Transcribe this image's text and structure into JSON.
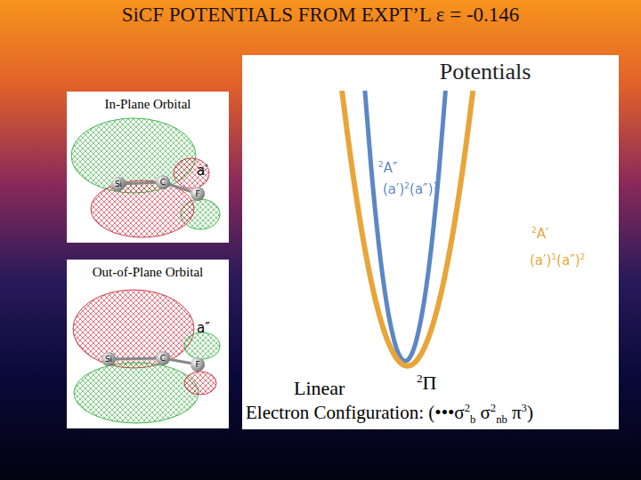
{
  "title": "SiCF POTENTIALS FROM EXPT’L ε = -0.146",
  "orbitals": [
    {
      "header": "In-Plane Orbital",
      "symbol": "a′",
      "atoms": [
        "Si",
        "C",
        "F"
      ]
    },
    {
      "header": "Out-of-Plane Orbital",
      "symbol": "a″",
      "atoms": [
        "Si",
        "C",
        "F"
      ]
    }
  ],
  "chart_data": {
    "type": "line",
    "title": "Potentials",
    "xlim": [
      0,
      10
    ],
    "ylim": [
      0,
      10
    ],
    "grid": false,
    "tick_labels": false,
    "series": [
      {
        "color": "#e8a53a",
        "x": [
          2.65,
          2.89,
          3.19,
          3.49,
          3.79,
          4.09,
          4.39,
          4.69,
          4.99,
          5.29,
          5.59,
          5.89,
          6.13
        ],
        "values": [
          10,
          7.5,
          4.84,
          2.76,
          1.28,
          0.4,
          0.1,
          0.4,
          1.28,
          2.76,
          4.84,
          7.5,
          10
        ]
      },
      {
        "color": "#5b87c5",
        "x": [
          3.26,
          3.43,
          3.63,
          3.83,
          4.03,
          4.18,
          4.33,
          4.48,
          4.63,
          4.83,
          5.03,
          5.23,
          5.4
        ],
        "values": [
          10,
          7.17,
          4.45,
          2.41,
          1.05,
          0.47,
          0.28,
          0.47,
          1.05,
          2.41,
          4.45,
          7.17,
          10
        ]
      }
    ],
    "annotations": [
      {
        "label": [
          {
            "sup": "2"
          },
          {
            "t": "A″"
          }
        ],
        "text": [
          {
            "t": "(a′)"
          },
          {
            "sup": "2"
          },
          {
            "t": "(a″)"
          },
          {
            "sup": "1"
          }
        ],
        "color": "#5b87c5"
      },
      {
        "label": [
          {
            "sup": "2"
          },
          {
            "t": "A′"
          }
        ],
        "text": [
          {
            "t": "(a′)"
          },
          {
            "sup": "1"
          },
          {
            "t": "(a″)"
          },
          {
            "sup": "2"
          }
        ],
        "color": "#e8a53a"
      }
    ]
  },
  "footer": {
    "state_label": "Linear",
    "state": [
      {
        "sup": "2"
      },
      {
        "t": "Π"
      }
    ],
    "configuration": [
      {
        "t": "Electron Configuration: (•••σ"
      },
      {
        "sup": "2"
      },
      {
        "sub": "b"
      },
      {
        "t": " σ"
      },
      {
        "sup": "2"
      },
      {
        "sub": "nb"
      },
      {
        "t": " π"
      },
      {
        "sup": "3"
      },
      {
        "t": ")"
      }
    ]
  }
}
